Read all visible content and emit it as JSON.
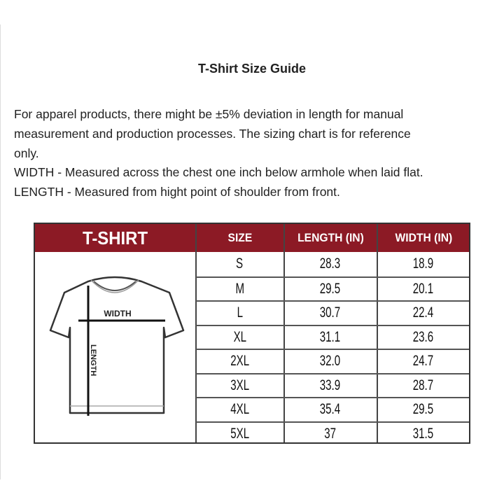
{
  "title": "T-Shirt Size Guide",
  "description_lines": [
    "For apparel products, there might be ±5% deviation in length for manual",
    "measurement and production processes. The sizing chart is for reference",
    "only.",
    "WIDTH - Measured across the chest one inch below armhole when laid flat.",
    "LENGTH - Measured from hight point of shoulder from front."
  ],
  "table": {
    "header_color": "#8c1a25",
    "headers": {
      "product": "T-SHIRT",
      "size": "SIZE",
      "length": "LENGTH (IN)",
      "width": "WIDTH (IN)"
    },
    "diagram_labels": {
      "width": "WIDTH",
      "length": "LENGTH"
    },
    "rows": [
      {
        "size": "S",
        "length": "28.3",
        "width": "18.9"
      },
      {
        "size": "M",
        "length": "29.5",
        "width": "20.1"
      },
      {
        "size": "L",
        "length": "30.7",
        "width": "22.4"
      },
      {
        "size": "XL",
        "length": "31.1",
        "width": "23.6"
      },
      {
        "size": "2XL",
        "length": "32.0",
        "width": "24.7"
      },
      {
        "size": "3XL",
        "length": "33.9",
        "width": "28.7"
      },
      {
        "size": "4XL",
        "length": "35.4",
        "width": "29.5"
      },
      {
        "size": "5XL",
        "length": "37",
        "width": "31.5"
      }
    ]
  }
}
